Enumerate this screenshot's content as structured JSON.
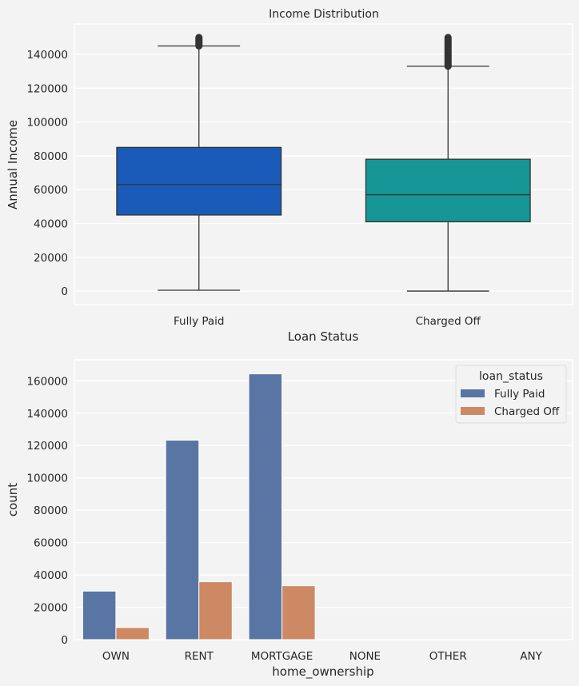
{
  "chart_data": [
    {
      "type": "box",
      "title": "Income Distribution",
      "xlabel": "Loan Status",
      "ylabel": "Annual Income",
      "ylim": [
        -8000,
        158000
      ],
      "yticks": [
        0,
        20000,
        40000,
        60000,
        80000,
        100000,
        120000,
        140000
      ],
      "grid": true,
      "categories": [
        "Fully Paid",
        "Charged Off"
      ],
      "colors": [
        "#1a5bba",
        "#169696"
      ],
      "boxes": [
        {
          "whisker_low": 500,
          "q1": 45000,
          "median": 63000,
          "q3": 85000,
          "whisker_high": 145000,
          "outlier_range": [
            145000,
            150000
          ]
        },
        {
          "whisker_low": 0,
          "q1": 41000,
          "median": 57000,
          "q3": 78000,
          "whisker_high": 133000,
          "outlier_range": [
            133000,
            150000
          ]
        }
      ]
    },
    {
      "type": "bar",
      "title": "",
      "xlabel": "home_ownership",
      "ylabel": "count",
      "ylim": [
        0,
        173000
      ],
      "yticks": [
        0,
        20000,
        40000,
        60000,
        80000,
        100000,
        120000,
        140000,
        160000
      ],
      "grid": true,
      "categories": [
        "OWN",
        "RENT",
        "MORTGAGE",
        "NONE",
        "OTHER",
        "ANY"
      ],
      "legend": {
        "title": "loan_status",
        "placement": "top-right"
      },
      "series": [
        {
          "name": "Fully Paid",
          "color": "#5875a4",
          "values": [
            30000,
            123300,
            164300,
            0,
            0,
            0
          ]
        },
        {
          "name": "Charged Off",
          "color": "#cc8963",
          "values": [
            7500,
            35800,
            33300,
            0,
            0,
            0
          ]
        }
      ]
    }
  ]
}
